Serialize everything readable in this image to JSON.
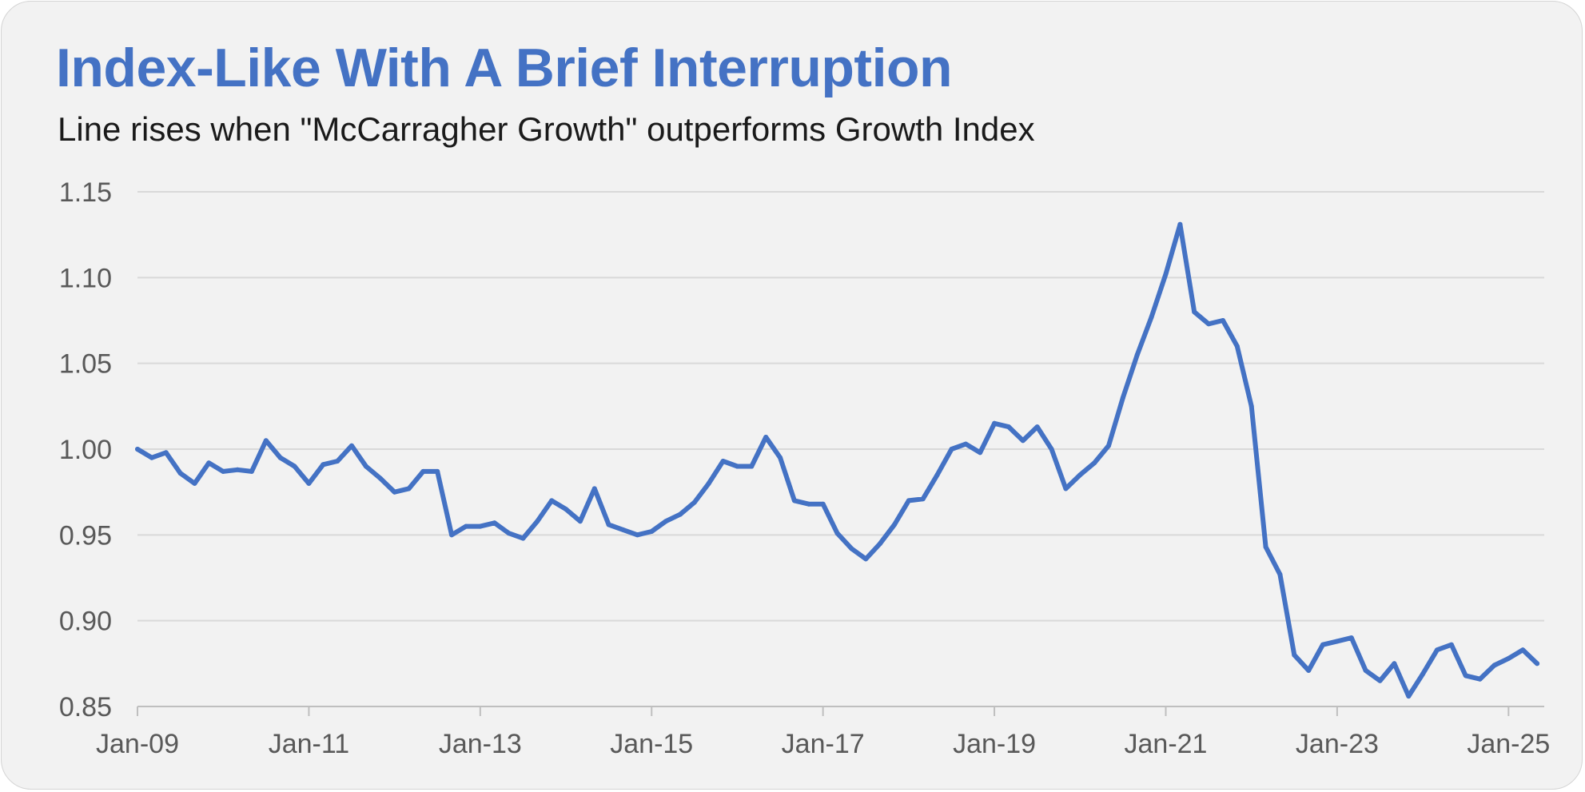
{
  "chart_data": {
    "type": "line",
    "title": "Index-Like With A Brief Interruption",
    "subtitle": "Line rises when \"McCarragher Growth\" outperforms Growth Index",
    "xlabel": "",
    "ylabel": "",
    "ylim": [
      0.85,
      1.15
    ],
    "xlim": [
      "2009-01",
      "2025-06"
    ],
    "yticks": [
      "1.15",
      "1.10",
      "1.05",
      "1.00",
      "0.95",
      "0.90",
      "0.85"
    ],
    "xticks": [
      "Jan-09",
      "Jan-11",
      "Jan-13",
      "Jan-15",
      "Jan-17",
      "Jan-19",
      "Jan-21",
      "Jan-23",
      "Jan-25"
    ],
    "grid": true,
    "legend": "none",
    "color": "#4472c4",
    "series": [
      {
        "x": [
          "2009-01",
          "2009-03",
          "2009-05",
          "2009-07",
          "2009-09",
          "2009-11",
          "2010-01",
          "2010-03",
          "2010-05",
          "2010-07",
          "2010-09",
          "2010-11",
          "2011-01",
          "2011-03",
          "2011-05",
          "2011-07",
          "2011-09",
          "2011-11",
          "2012-01",
          "2012-03",
          "2012-05",
          "2012-07",
          "2012-09",
          "2012-11",
          "2013-01",
          "2013-03",
          "2013-05",
          "2013-07",
          "2013-09",
          "2013-11",
          "2014-01",
          "2014-03",
          "2014-05",
          "2014-07",
          "2014-09",
          "2014-11",
          "2015-01",
          "2015-03",
          "2015-05",
          "2015-07",
          "2015-09",
          "2015-11",
          "2016-01",
          "2016-03",
          "2016-05",
          "2016-07",
          "2016-09",
          "2016-11",
          "2017-01",
          "2017-03",
          "2017-05",
          "2017-07",
          "2017-09",
          "2017-11",
          "2018-01",
          "2018-03",
          "2018-05",
          "2018-07",
          "2018-09",
          "2018-11",
          "2019-01",
          "2019-03",
          "2019-05",
          "2019-07",
          "2019-09",
          "2019-11",
          "2020-01",
          "2020-03",
          "2020-05",
          "2020-07",
          "2020-09",
          "2020-11",
          "2021-01",
          "2021-03",
          "2021-05",
          "2021-07",
          "2021-09",
          "2021-11",
          "2022-01",
          "2022-03",
          "2022-05",
          "2022-07",
          "2022-09",
          "2022-11",
          "2023-01",
          "2023-03",
          "2023-05",
          "2023-07",
          "2023-09",
          "2023-11",
          "2024-01",
          "2024-03",
          "2024-05",
          "2024-07",
          "2024-09",
          "2024-11",
          "2025-01",
          "2025-03",
          "2025-05"
        ],
        "values": [
          1.0,
          0.995,
          0.998,
          0.986,
          0.98,
          0.992,
          0.987,
          0.988,
          0.987,
          1.005,
          0.995,
          0.99,
          0.98,
          0.991,
          0.993,
          1.002,
          0.99,
          0.983,
          0.975,
          0.977,
          0.987,
          0.987,
          0.95,
          0.955,
          0.955,
          0.957,
          0.951,
          0.948,
          0.958,
          0.97,
          0.965,
          0.958,
          0.977,
          0.956,
          0.953,
          0.95,
          0.952,
          0.958,
          0.962,
          0.969,
          0.98,
          0.993,
          0.99,
          0.99,
          1.007,
          0.995,
          0.97,
          0.968,
          0.968,
          0.951,
          0.942,
          0.936,
          0.945,
          0.956,
          0.97,
          0.971,
          0.985,
          1.0,
          1.003,
          0.998,
          1.015,
          1.013,
          1.005,
          1.013,
          1.0,
          0.977,
          0.985,
          0.992,
          1.002,
          1.03,
          1.055,
          1.077,
          1.102,
          1.131,
          1.08,
          1.073,
          1.075,
          1.06,
          1.025,
          0.943,
          0.927,
          0.88,
          0.871,
          0.886,
          0.888,
          0.89,
          0.871,
          0.865,
          0.875,
          0.856,
          0.869,
          0.883,
          0.886,
          0.868,
          0.866,
          0.874,
          0.878,
          0.883,
          0.875
        ]
      }
    ]
  }
}
